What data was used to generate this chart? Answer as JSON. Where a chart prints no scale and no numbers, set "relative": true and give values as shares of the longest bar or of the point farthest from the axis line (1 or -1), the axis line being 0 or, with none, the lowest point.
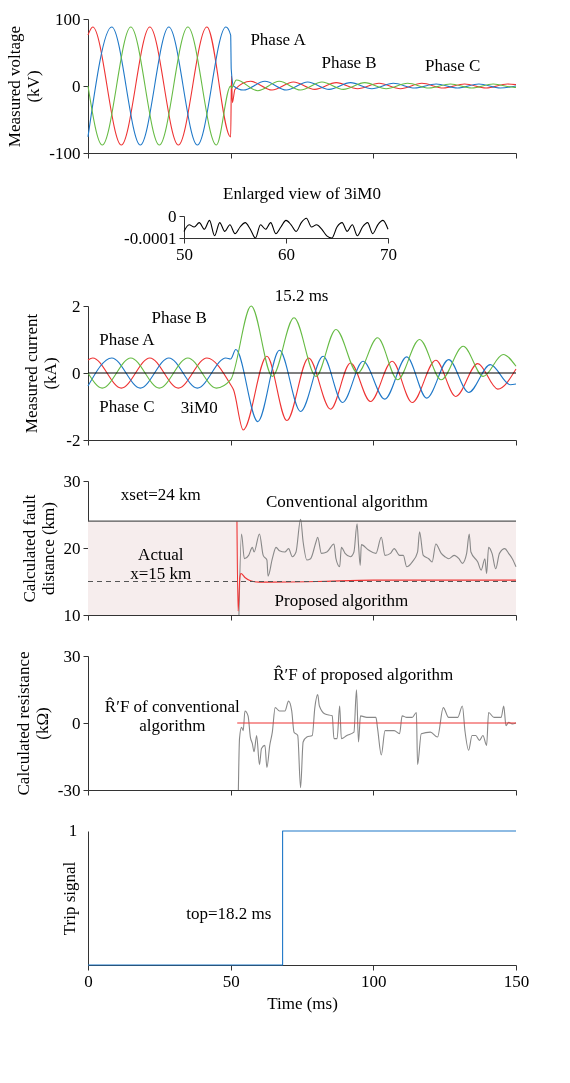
{
  "chart_data": [
    {
      "type": "line",
      "ylabel": "Measured voltage\n(kV)",
      "xlim": [
        0,
        150
      ],
      "xticks": [
        0,
        50,
        100,
        150
      ],
      "ylim": [
        -100,
        100
      ],
      "yticks": [
        -100,
        0,
        100
      ],
      "tick_labels": "y",
      "series": [
        {
          "color": "#ee3333",
          "x": [
            0,
            1.67,
            11.67,
            21.67,
            31.67,
            41.67,
            50,
            50.3,
            50.6,
            51.5,
            57,
            64.5,
            72,
            79.5,
            87,
            94.5,
            102,
            109.5,
            117,
            124.5,
            132,
            139.5,
            147,
            150
          ],
          "values": [
            76,
            88,
            -88,
            88,
            -88,
            88,
            -76,
            15,
            -25,
            -5,
            7,
            -6,
            6,
            -5,
            5,
            -4,
            4,
            -4,
            4,
            -3,
            3,
            -3,
            3,
            2
          ]
        },
        {
          "color": "#1f78c8",
          "x": [
            0,
            8.33,
            18.33,
            28.33,
            38.33,
            48.33,
            50,
            50.2,
            51,
            54.5,
            62,
            69.5,
            77,
            84.5,
            92,
            99.5,
            107,
            114.5,
            122,
            129.5,
            137,
            144.5,
            150
          ],
          "values": [
            -76,
            88,
            -88,
            88,
            -88,
            88,
            76,
            25,
            0,
            -6,
            7,
            -6,
            6,
            -5,
            5,
            -4,
            4,
            -3,
            3,
            -3,
            3,
            -3,
            0
          ]
        },
        {
          "color": "#66bb44",
          "x": [
            0,
            5,
            15,
            25,
            35,
            45,
            50,
            50.3,
            52,
            59.5,
            67,
            74.5,
            82,
            89.5,
            97,
            104.5,
            112,
            119.5,
            127,
            134.5,
            142,
            149.5,
            150
          ],
          "values": [
            0,
            -88,
            88,
            -88,
            88,
            -88,
            0,
            -3,
            9,
            -7,
            7,
            -6,
            6,
            -5,
            5,
            -4,
            4,
            -3,
            3,
            -3,
            3,
            -2,
            -2
          ]
        }
      ],
      "annotations": [
        "Phase A",
        "Phase B",
        "Phase C"
      ]
    },
    {
      "type": "line",
      "title": "Enlarged view of 3iM0",
      "xlim": [
        50,
        70
      ],
      "xticks": [
        50,
        60,
        70
      ],
      "ylim": [
        -0.0001,
        0
      ],
      "yticks": [
        -0.0001,
        0
      ],
      "series": [
        {
          "color": "#000000",
          "x": [
            50,
            50.5,
            51,
            51.5,
            52,
            52.5,
            53,
            53.5,
            54,
            54.5,
            55,
            55.5,
            56,
            56.5,
            57,
            57.5,
            58,
            58.5,
            59,
            59.5,
            60,
            60.5,
            61,
            61.5,
            62,
            62.5,
            63,
            63.5,
            64,
            64.5,
            65,
            65.5,
            66,
            66.5,
            67,
            67.5,
            68,
            68.5,
            69,
            69.5,
            70
          ],
          "values": [
            -7e-05,
            -4e-05,
            -5e-05,
            -3e-05,
            -6e-05,
            -2e-05,
            -9e-05,
            -3e-05,
            -7e-05,
            -4e-05,
            -8e-05,
            -5e-05,
            -3e-05,
            -6e-05,
            -0.0001,
            -4e-05,
            -6e-05,
            -3e-05,
            -8e-05,
            -5e-05,
            -2e-05,
            -4e-05,
            -7e-05,
            -3e-05,
            -1e-05,
            -5e-05,
            -4e-05,
            -6e-05,
            -9e-05,
            -0.0001,
            -5e-05,
            -3e-05,
            -7e-05,
            -4e-05,
            -9e-05,
            -5e-05,
            -3e-05,
            -8e-05,
            -4e-05,
            -2e-05,
            -6e-05
          ]
        }
      ]
    },
    {
      "type": "line",
      "ylabel": "Measured current\n(kA)",
      "xlim": [
        0,
        150
      ],
      "xticks": [
        0,
        50,
        100,
        150
      ],
      "ylim": [
        -2,
        2
      ],
      "yticks": [
        -2,
        0,
        2
      ],
      "tick_labels": "y",
      "series": [
        {
          "color": "#ee3333",
          "x": [
            0,
            1.67,
            11.67,
            21.67,
            31.67,
            41.67,
            50,
            51,
            54.4,
            62.7,
            69.7,
            77.3,
            85,
            92,
            99,
            106.6,
            113.6,
            121.9,
            128.9,
            136.6,
            143.6,
            150
          ],
          "values": [
            0.39,
            0.45,
            -0.45,
            0.45,
            -0.45,
            0.45,
            -0.35,
            -0.5,
            -1.7,
            0.5,
            -1.42,
            0.45,
            -1.08,
            0.3,
            -0.85,
            0.35,
            -0.88,
            0.38,
            -0.7,
            0.28,
            -0.48,
            0.12
          ]
        },
        {
          "color": "#1f78c8",
          "x": [
            0,
            8.33,
            18.33,
            28.33,
            38.33,
            48.33,
            50,
            51.8,
            59.5,
            67.1,
            74.5,
            82.4,
            89.2,
            96.4,
            104,
            111.7,
            118.7,
            126.4,
            133.4,
            141,
            148,
            150
          ],
          "values": [
            -0.39,
            0.45,
            -0.45,
            0.45,
            -0.45,
            0.45,
            0.42,
            0.7,
            -1.45,
            0.68,
            -1.15,
            0.5,
            -0.88,
            0.35,
            -0.78,
            0.48,
            -0.75,
            0.4,
            -0.58,
            0.25,
            -0.35,
            -0.33
          ]
        },
        {
          "color": "#66bb44",
          "x": [
            0,
            5,
            15,
            25,
            35,
            45,
            50,
            57.2,
            64.6,
            72.2,
            79.9,
            86.9,
            94.5,
            101.5,
            108.5,
            116.2,
            123.8,
            131.5,
            138.5,
            145.5,
            150
          ],
          "values": [
            0,
            -0.45,
            0.45,
            -0.45,
            0.45,
            -0.45,
            -0.2,
            2.0,
            -0.1,
            1.65,
            -0.1,
            1.3,
            0,
            1.05,
            -0.2,
            1.0,
            -0.2,
            0.8,
            -0.1,
            0.55,
            0.2
          ]
        },
        {
          "color": "#000000",
          "x": [
            0,
            150
          ],
          "values": [
            0,
            0
          ]
        }
      ],
      "annotations": [
        "Phase A",
        "Phase B",
        "Phase C",
        "3iM0",
        "15.2 ms"
      ]
    },
    {
      "type": "line",
      "ylabel": "Calculated fault\ndistance (km)",
      "xlim": [
        0,
        150
      ],
      "xticks": [
        0,
        50,
        100,
        150
      ],
      "ylim": [
        10,
        30
      ],
      "yticks": [
        10,
        20,
        30
      ],
      "tick_labels": "y",
      "bands": [
        {
          "axis": "y",
          "from": 10,
          "to": 24,
          "color": "#f6eded"
        }
      ],
      "ref_lines": [
        {
          "axis": "y",
          "value": 24,
          "label": "xset=24 km",
          "color": "#555555",
          "line_style": "solid"
        },
        {
          "axis": "y",
          "value": 15,
          "label": "Actual\nx=15 km",
          "color": "#555555",
          "line_style": "dashed"
        }
      ],
      "series": [
        {
          "color": "#888888",
          "x": [
            52.9,
            53.8,
            54.8,
            56.3,
            57.6,
            58.2,
            60.1,
            61.4,
            62.7,
            63.1,
            64.6,
            65.9,
            67.1,
            69,
            70.3,
            71.6,
            72.9,
            74.5,
            75.4,
            76.7,
            78,
            79.9,
            80.5,
            81.8,
            83.7,
            86.2,
            86.9,
            88.2,
            88.8,
            90.1,
            92,
            93.2,
            94.3,
            94.8,
            95.4,
            95.8,
            98.3,
            100.9,
            102.8,
            104.1,
            106,
            107.3,
            109.2,
            110.5,
            111.7,
            113.6,
            115.5,
            116.2,
            117.5,
            119.4,
            120.6,
            121.9,
            123.8,
            125.1,
            126.4,
            128.3,
            130,
            131.2,
            132.7,
            133.6,
            134.2,
            136.6,
            137.8,
            139.1,
            139.7,
            140.4,
            141.6,
            142.9,
            144.2,
            146.1,
            147.4,
            148.7,
            150
          ],
          "values": [
            10,
            22.1,
            18.4,
            18.9,
            20.1,
            19.4,
            22.1,
            18.9,
            18.2,
            15.8,
            18.4,
            20.1,
            19.6,
            19.4,
            19.9,
            18.7,
            19.4,
            24.3,
            20.9,
            18.2,
            18.4,
            20.9,
            21.6,
            19.2,
            19.4,
            20.6,
            18.4,
            17.2,
            20.1,
            19.2,
            18.7,
            19.4,
            23.6,
            20.5,
            17.4,
            20.5,
            19.7,
            19.2,
            21.6,
            18.9,
            19.2,
            19.9,
            18.9,
            18.9,
            17.2,
            17.9,
            19.4,
            22.4,
            18.9,
            18.4,
            17.9,
            20.6,
            19.2,
            18.7,
            18.4,
            18.9,
            18.4,
            17.7,
            19.2,
            22.1,
            19.4,
            17.9,
            16.7,
            18.4,
            16.2,
            20.1,
            19.2,
            16.9,
            19.2,
            19.9,
            19.2,
            18.4,
            17.2
          ]
        },
        {
          "color": "#ee3333",
          "x": [
            52.2,
            52.6,
            53.2,
            53.6,
            55,
            57,
            60,
            80,
            100,
            150
          ],
          "values": [
            24,
            10.6,
            15.5,
            16.2,
            15.6,
            15.1,
            14.9,
            15,
            15.2,
            15.2
          ]
        }
      ],
      "annotations": [
        "Conventional algorithm",
        "Proposed algorithm"
      ]
    },
    {
      "type": "line",
      "ylabel": "Calculated resistance\n(kΩ)",
      "xlim": [
        0,
        150
      ],
      "xticks": [
        0,
        50,
        100,
        150
      ],
      "ylim": [
        -30,
        30
      ],
      "yticks": [
        -30,
        0,
        30
      ],
      "tick_labels": "y",
      "series": [
        {
          "color": "#888888",
          "x": [
            52.7,
            53.1,
            53.8,
            54.4,
            55,
            56.1,
            56.9,
            57.6,
            58.2,
            59.1,
            60.1,
            60.8,
            62,
            62.7,
            63.7,
            64.6,
            65.6,
            67.1,
            69,
            70.3,
            71.4,
            72.2,
            73.5,
            74.5,
            75.4,
            76.7,
            78.6,
            79.5,
            80.5,
            81.1,
            83.1,
            85.6,
            86.2,
            87.3,
            88.2,
            88.8,
            90.7,
            93.2,
            94.1,
            94.8,
            95.5,
            97.7,
            100.9,
            101.5,
            102.8,
            104.1,
            107.3,
            109.2,
            110.1,
            111.7,
            113.6,
            115.1,
            115.5,
            116.8,
            120,
            122.5,
            124.5,
            126.4,
            129.6,
            131.2,
            132.1,
            133.4,
            134.6,
            135.9,
            137.2,
            138.4,
            139.7,
            140.4,
            142.3,
            144.8,
            145.7,
            146.5,
            147.4,
            148.7,
            150
          ],
          "values": [
            -30,
            -7,
            -1.9,
            -3.4,
            5.4,
            3.2,
            -6.3,
            -9.2,
            -12.9,
            -5.6,
            -18.7,
            -11.4,
            -10,
            -19.9,
            -10,
            -4.1,
            6.9,
            5.4,
            5.4,
            9.8,
            5.4,
            -4.1,
            -5.6,
            -29,
            -8.5,
            -6.3,
            -5.6,
            6.9,
            12.7,
            7.6,
            4,
            3.2,
            -7,
            -7,
            7.6,
            -7,
            -5.6,
            -4.1,
            14.9,
            -8.5,
            3.2,
            2.5,
            2.5,
            -2.6,
            -14.3,
            -3.4,
            -3.4,
            -4.8,
            3.2,
            2.5,
            2.5,
            4.7,
            -18.7,
            -4.8,
            -4.1,
            -6.3,
            6.9,
            2.5,
            2.5,
            7.6,
            -3.4,
            -12.2,
            -5.6,
            -5.6,
            -7.8,
            -5.6,
            -10,
            4.7,
            2.5,
            2.5,
            7.6,
            -1.2,
            0.3,
            -0.4,
            0
          ]
        },
        {
          "color": "#ee3333",
          "x": [
            52.3,
            150
          ],
          "values": [
            0,
            0
          ]
        }
      ],
      "annotations": [
        "R̂′F of proposed algorithm",
        "R̂′F of conventional\nalgorithm"
      ]
    },
    {
      "type": "step",
      "ylabel": "Trip signal",
      "xlabel": "Time (ms)",
      "xlim": [
        0,
        150
      ],
      "xticks": [
        0,
        50,
        100,
        150
      ],
      "relative": true,
      "series": [
        {
          "color": "#1f78c8",
          "x": [
            0,
            68.2,
            150
          ],
          "values": [
            0,
            1,
            1
          ]
        }
      ],
      "annotations": [
        "1",
        "top=18.2 ms"
      ]
    }
  ]
}
